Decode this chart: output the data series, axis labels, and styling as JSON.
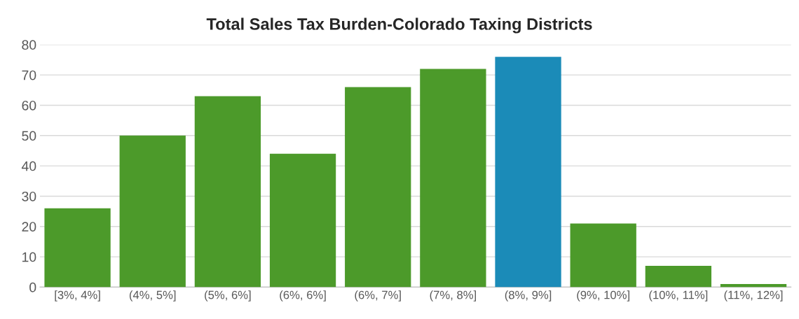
{
  "chart_data": {
    "type": "bar",
    "title": "Total Sales Tax Burden-Colorado Taxing Districts",
    "categories": [
      "[3%, 4%]",
      "(4%, 5%]",
      "(5%, 6%]",
      "(6%, 6%]",
      "(6%, 7%]",
      "(7%, 8%]",
      "(8%, 9%]",
      "(9%, 10%]",
      "(10%, 11%]",
      "(11%, 12%]"
    ],
    "values": [
      26,
      50,
      63,
      44,
      66,
      72,
      76,
      21,
      7,
      1
    ],
    "colors": [
      "#4c9a2a",
      "#4c9a2a",
      "#4c9a2a",
      "#4c9a2a",
      "#4c9a2a",
      "#4c9a2a",
      "#1b8bb8",
      "#4c9a2a",
      "#4c9a2a",
      "#4c9a2a"
    ],
    "ylim": [
      0,
      80
    ],
    "yticks": [
      0,
      10,
      20,
      30,
      40,
      50,
      60,
      70,
      80
    ],
    "grid": "y",
    "legend": false
  }
}
